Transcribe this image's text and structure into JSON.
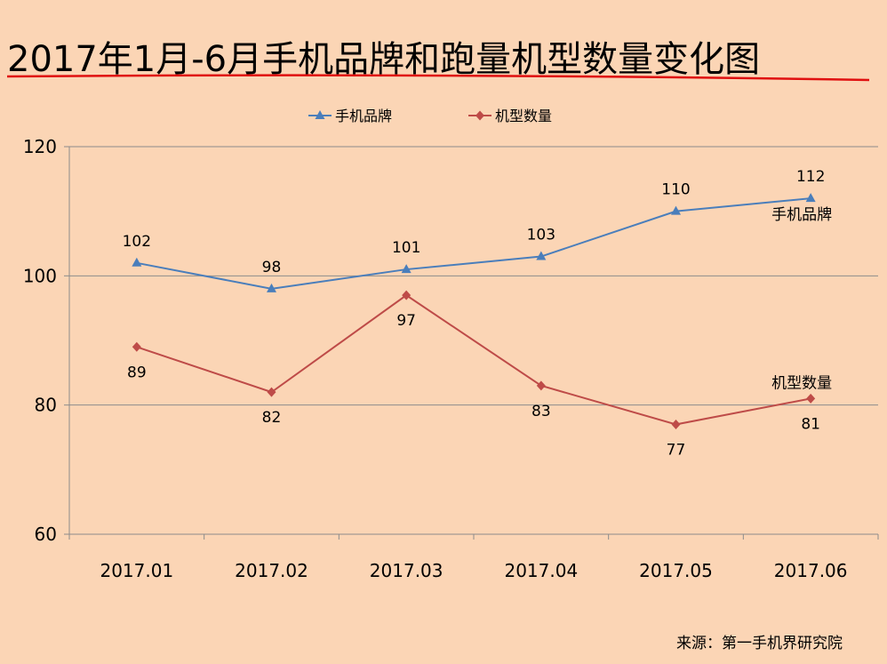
{
  "title": "2017年1月-6月手机品牌和跑量机型数量变化图",
  "source": "来源：第一手机界研究院",
  "colors": {
    "background": "#FBD5B5",
    "underline": "#E01010",
    "grid": "#8C8C8C"
  },
  "chart_data": {
    "type": "line",
    "categories": [
      "2017.01",
      "2017.02",
      "2017.03",
      "2017.04",
      "2017.05",
      "2017.06"
    ],
    "ylim": [
      60,
      120
    ],
    "yticks": [
      60,
      80,
      100,
      120
    ],
    "grid": true,
    "legend_position": "top",
    "series": [
      {
        "name": "手机品牌",
        "color": "#4A7EBB",
        "marker": "triangle",
        "values": [
          102,
          98,
          101,
          103,
          110,
          112
        ],
        "label_position": "above"
      },
      {
        "name": "机型数量",
        "color": "#BE4B48",
        "marker": "diamond",
        "values": [
          89,
          82,
          97,
          83,
          77,
          81
        ],
        "label_position": "below"
      }
    ]
  }
}
